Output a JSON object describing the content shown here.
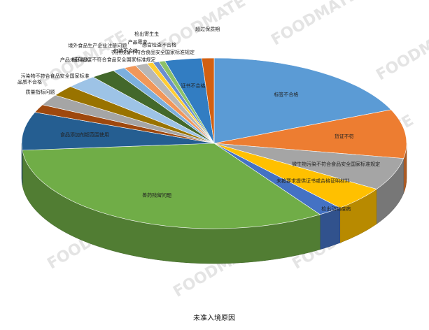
{
  "chart_data": {
    "type": "pie3d",
    "title": "未准入境原因",
    "watermark": "FOODMATE",
    "categories": [
      "标签不合格",
      "货证不符",
      "微生物污染不符合食品安全国家标准规定",
      "未按要求提供证书或合格证明材料",
      "检出动物疫病",
      "兽药残留问题",
      "食品添加剂超范围使用",
      "品质不合格",
      "质量指标问题",
      "污染物不符合食品安全国家标准",
      "产品未获准入",
      "境外食品生产企业注册问题",
      "储存温度不符合食品安全国家标准规定",
      "包装不合格",
      "产品霉变",
      "检出寄生虫",
      "农药残留不符合食品安全国家标准规定",
      "感官检查不合格",
      "证书不合格",
      "超过保质期"
    ],
    "values": [
      18,
      9,
      6,
      4.5,
      2,
      32,
      7,
      1.5,
      2,
      2,
      2.5,
      2,
      1,
      1,
      1,
      0.5,
      0.5,
      0.5,
      3,
      1
    ],
    "colors": [
      "#5b9bd5",
      "#ed7d31",
      "#a5a5a5",
      "#ffc000",
      "#4472c4",
      "#70ad47",
      "#255e91",
      "#9e480e",
      "#a5a5a5",
      "#997300",
      "#9dc3e6",
      "#43682b",
      "#7cafdd",
      "#f1975a",
      "#b7b7b7",
      "#ffcd33",
      "#698ed0",
      "#8cc168",
      "#327dc2",
      "#d26012"
    ]
  }
}
